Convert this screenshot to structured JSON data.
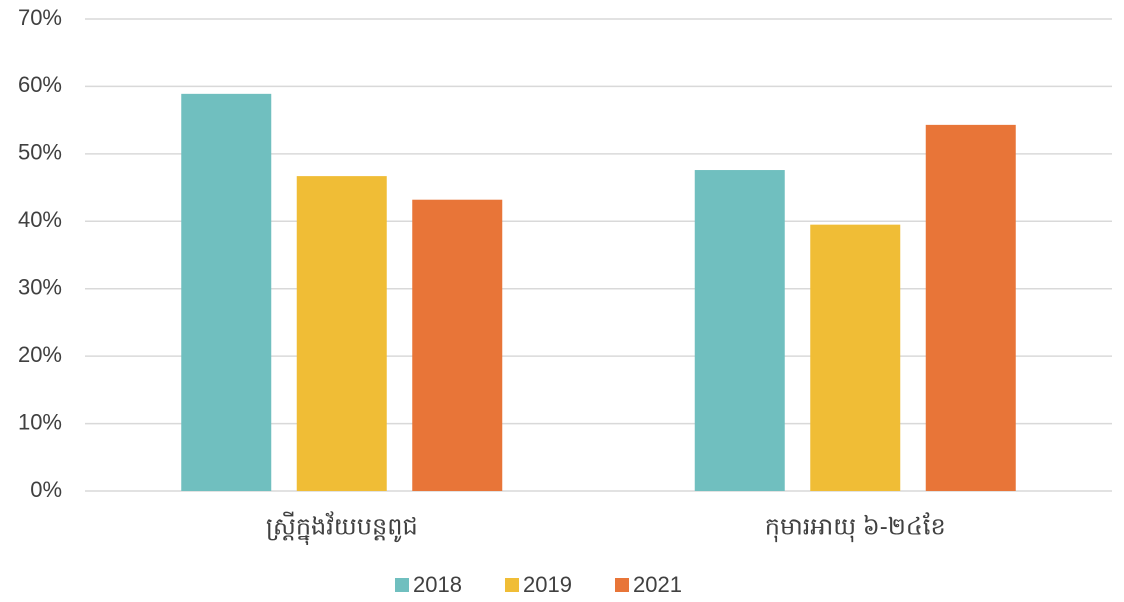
{
  "chart_data": {
    "type": "bar",
    "categories": [
      "ស្ត្រីក្នុងវ័យបន្តពូជ",
      "កុមារអាយុ ៦-២៤ខែ"
    ],
    "series": [
      {
        "name": "2018",
        "color": "#70bfbf",
        "values": [
          58.9,
          47.6
        ]
      },
      {
        "name": "2019",
        "color": "#f0bd36",
        "values": [
          46.7,
          39.5
        ]
      },
      {
        "name": "2021",
        "color": "#e87538",
        "values": [
          43.2,
          54.3
        ]
      }
    ],
    "ylim": [
      0,
      70
    ],
    "yticks": [
      {
        "value": 0,
        "label": "0%"
      },
      {
        "value": 10,
        "label": "10%"
      },
      {
        "value": 20,
        "label": "20%"
      },
      {
        "value": 30,
        "label": "30%"
      },
      {
        "value": 40,
        "label": "40%"
      },
      {
        "value": 50,
        "label": "50%"
      },
      {
        "value": 60,
        "label": "60%"
      },
      {
        "value": 70,
        "label": "70%"
      }
    ],
    "grid": true,
    "legend": "bottom"
  }
}
